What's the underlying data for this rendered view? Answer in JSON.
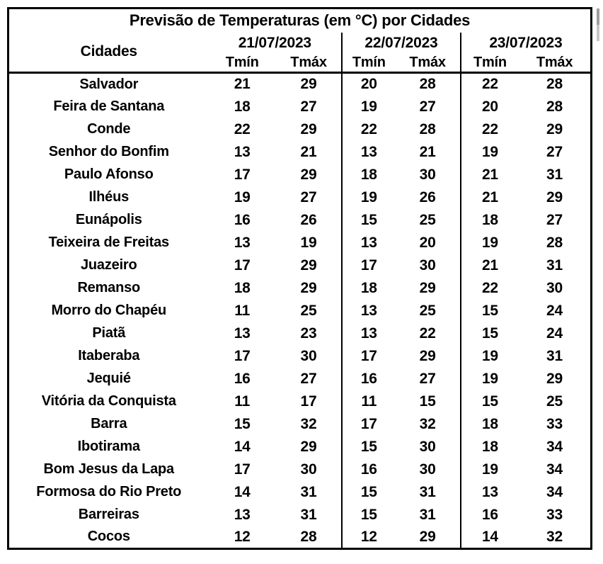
{
  "chart_data": {
    "type": "table",
    "title": "Previsão de Temperaturas (em °C) por Cidades",
    "city_column_header": "Cidades",
    "date_headers": [
      "21/07/2023",
      "22/07/2023",
      "23/07/2023"
    ],
    "sub_headers": [
      "Tmín",
      "Tmáx"
    ],
    "rows": [
      {
        "city": "Salvador",
        "temps": [
          21,
          29,
          20,
          28,
          22,
          28
        ]
      },
      {
        "city": "Feira de Santana",
        "temps": [
          18,
          27,
          19,
          27,
          20,
          28
        ]
      },
      {
        "city": "Conde",
        "temps": [
          22,
          29,
          22,
          28,
          22,
          29
        ]
      },
      {
        "city": "Senhor do Bonfim",
        "temps": [
          13,
          21,
          13,
          21,
          19,
          27
        ]
      },
      {
        "city": "Paulo Afonso",
        "temps": [
          17,
          29,
          18,
          30,
          21,
          31
        ]
      },
      {
        "city": "Ilhéus",
        "temps": [
          19,
          27,
          19,
          26,
          21,
          29
        ]
      },
      {
        "city": "Eunápolis",
        "temps": [
          16,
          26,
          15,
          25,
          18,
          27
        ]
      },
      {
        "city": "Teixeira de Freitas",
        "temps": [
          13,
          19,
          13,
          20,
          19,
          28
        ]
      },
      {
        "city": "Juazeiro",
        "temps": [
          17,
          29,
          17,
          30,
          21,
          31
        ]
      },
      {
        "city": "Remanso",
        "temps": [
          18,
          29,
          18,
          29,
          22,
          30
        ]
      },
      {
        "city": "Morro do Chapéu",
        "temps": [
          11,
          25,
          13,
          25,
          15,
          24
        ]
      },
      {
        "city": "Piatã",
        "temps": [
          13,
          23,
          13,
          22,
          15,
          24
        ]
      },
      {
        "city": "Itaberaba",
        "temps": [
          17,
          30,
          17,
          29,
          19,
          31
        ]
      },
      {
        "city": "Jequié",
        "temps": [
          16,
          27,
          16,
          27,
          19,
          29
        ]
      },
      {
        "city": "Vitória da Conquista",
        "temps": [
          11,
          17,
          11,
          15,
          15,
          25
        ]
      },
      {
        "city": "Barra",
        "temps": [
          15,
          32,
          17,
          32,
          18,
          33
        ]
      },
      {
        "city": "Ibotirama",
        "temps": [
          14,
          29,
          15,
          30,
          18,
          34
        ]
      },
      {
        "city": "Bom Jesus da Lapa",
        "temps": [
          17,
          30,
          16,
          30,
          19,
          34
        ]
      },
      {
        "city": "Formosa do Rio Preto",
        "temps": [
          14,
          31,
          15,
          31,
          13,
          34
        ]
      },
      {
        "city": "Barreiras",
        "temps": [
          13,
          31,
          15,
          31,
          16,
          33
        ]
      },
      {
        "city": "Cocos",
        "temps": [
          12,
          28,
          12,
          29,
          14,
          32
        ]
      }
    ],
    "layout": {
      "border_color": "#000000",
      "background_color": "#ffffff",
      "text_color": "#000000"
    }
  }
}
